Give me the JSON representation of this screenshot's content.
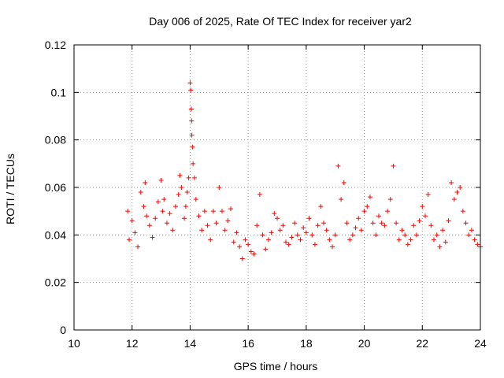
{
  "chart_data": {
    "type": "scatter",
    "title": "Day 006 of 2025, Rate Of TEC Index for receiver yar2",
    "xlabel": "GPS time / hours",
    "ylabel": "ROTI / TECUs",
    "xlim": [
      10,
      24
    ],
    "ylim": [
      0,
      0.12
    ],
    "x_ticks": [
      10,
      12,
      14,
      16,
      18,
      20,
      22,
      24
    ],
    "y_ticks": [
      0,
      0.02,
      0.04,
      0.06,
      0.08,
      0.1,
      0.12
    ],
    "x_tick_labels": [
      "10",
      "12",
      "14",
      "16",
      "18",
      "20",
      "22",
      "24"
    ],
    "y_tick_labels": [
      "0",
      "0.02",
      "0.04",
      "0.06",
      "0.08",
      "0.1",
      "0.12"
    ],
    "grid": true,
    "marker": "+",
    "color": "#ff0000",
    "series": [
      {
        "name": "ROTI",
        "x": [
          11.85,
          11.9,
          12.0,
          12.1,
          12.2,
          12.3,
          12.4,
          12.45,
          12.5,
          12.6,
          12.7,
          12.8,
          12.9,
          13.0,
          13.05,
          13.1,
          13.2,
          13.3,
          13.4,
          13.5,
          13.6,
          13.65,
          13.7,
          13.8,
          13.85,
          13.9,
          13.95,
          14.0,
          14.02,
          14.04,
          14.05,
          14.06,
          14.08,
          14.1,
          14.15,
          14.2,
          14.3,
          14.4,
          14.5,
          14.6,
          14.7,
          14.8,
          14.9,
          15.0,
          15.1,
          15.2,
          15.3,
          15.4,
          15.5,
          15.6,
          15.7,
          15.8,
          15.9,
          16.0,
          16.1,
          16.2,
          16.3,
          16.4,
          16.5,
          16.6,
          16.7,
          16.8,
          16.9,
          17.0,
          17.1,
          17.2,
          17.3,
          17.4,
          17.5,
          17.6,
          17.7,
          17.8,
          17.9,
          18.0,
          18.1,
          18.2,
          18.3,
          18.4,
          18.5,
          18.6,
          18.7,
          18.8,
          18.9,
          19.0,
          19.1,
          19.2,
          19.3,
          19.4,
          19.5,
          19.6,
          19.7,
          19.8,
          19.9,
          20.0,
          20.1,
          20.2,
          20.3,
          20.4,
          20.5,
          20.6,
          20.7,
          20.8,
          20.9,
          21.0,
          21.1,
          21.2,
          21.3,
          21.4,
          21.5,
          21.6,
          21.7,
          21.8,
          21.9,
          22.0,
          22.1,
          22.2,
          22.3,
          22.4,
          22.5,
          22.6,
          22.7,
          22.8,
          22.9,
          23.0,
          23.1,
          23.2,
          23.3,
          23.4,
          23.5,
          23.6,
          23.7,
          23.8,
          23.9,
          24.0
        ],
        "y": [
          0.05,
          0.038,
          0.046,
          0.041,
          0.035,
          0.058,
          0.052,
          0.062,
          0.048,
          0.044,
          0.039,
          0.047,
          0.054,
          0.063,
          0.05,
          0.055,
          0.045,
          0.049,
          0.042,
          0.052,
          0.057,
          0.065,
          0.06,
          0.047,
          0.052,
          0.058,
          0.064,
          0.104,
          0.101,
          0.093,
          0.088,
          0.082,
          0.077,
          0.07,
          0.064,
          0.055,
          0.048,
          0.042,
          0.05,
          0.044,
          0.038,
          0.05,
          0.045,
          0.06,
          0.05,
          0.042,
          0.046,
          0.051,
          0.037,
          0.041,
          0.035,
          0.03,
          0.038,
          0.036,
          0.033,
          0.032,
          0.044,
          0.057,
          0.04,
          0.034,
          0.038,
          0.041,
          0.049,
          0.047,
          0.042,
          0.044,
          0.037,
          0.036,
          0.039,
          0.045,
          0.04,
          0.038,
          0.043,
          0.041,
          0.047,
          0.04,
          0.036,
          0.044,
          0.052,
          0.045,
          0.042,
          0.038,
          0.035,
          0.04,
          0.069,
          0.055,
          0.062,
          0.045,
          0.038,
          0.04,
          0.043,
          0.047,
          0.042,
          0.05,
          0.052,
          0.056,
          0.045,
          0.04,
          0.048,
          0.045,
          0.044,
          0.05,
          0.055,
          0.069,
          0.045,
          0.038,
          0.042,
          0.04,
          0.036,
          0.038,
          0.044,
          0.04,
          0.046,
          0.052,
          0.048,
          0.057,
          0.044,
          0.038,
          0.04,
          0.035,
          0.042,
          0.037,
          0.046,
          0.062,
          0.055,
          0.058,
          0.06,
          0.05,
          0.045,
          0.04,
          0.042,
          0.038,
          0.036,
          0.035
        ]
      }
    ]
  }
}
